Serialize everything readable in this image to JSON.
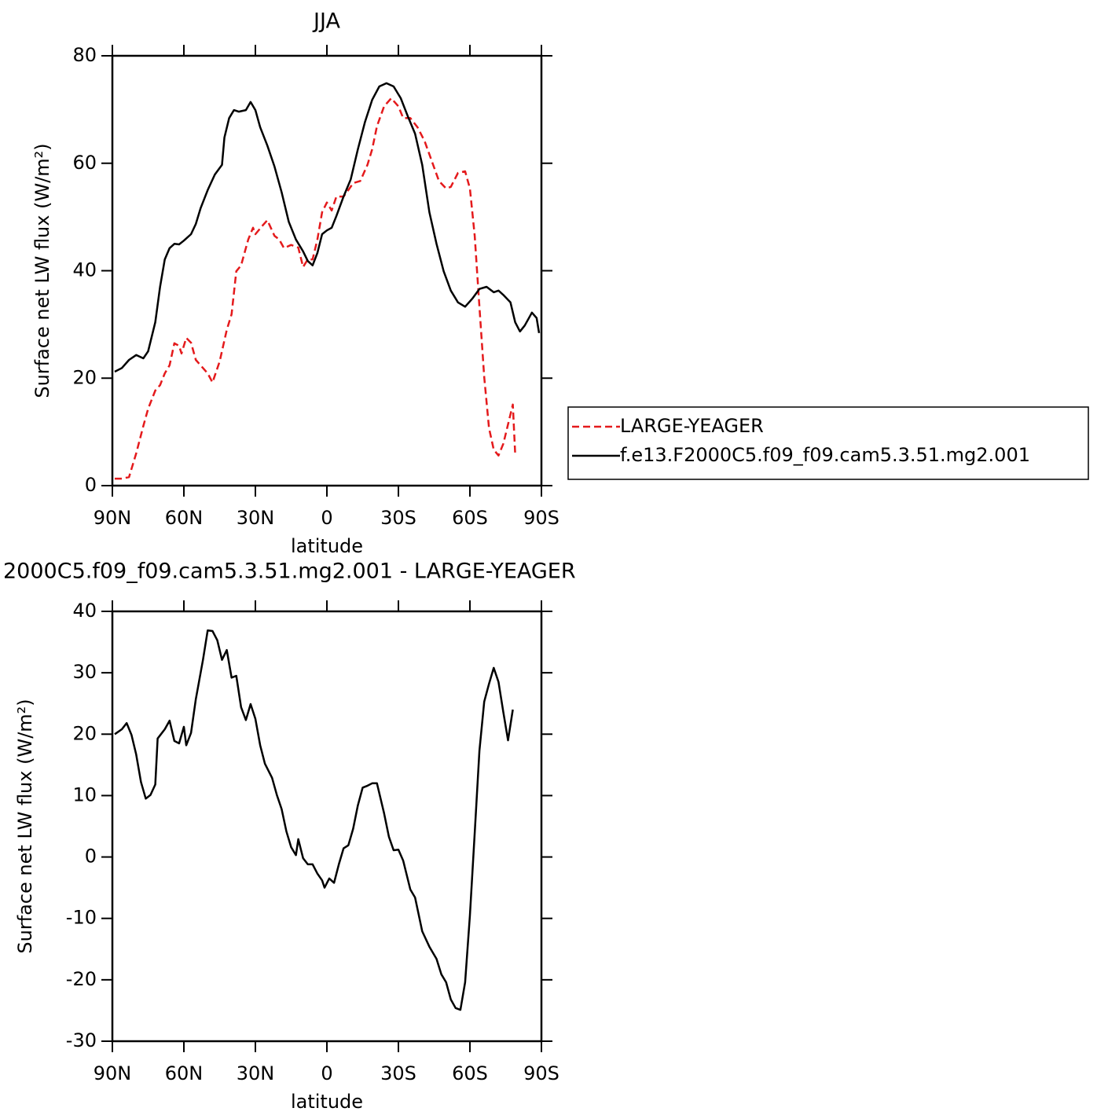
{
  "chart_data": [
    {
      "type": "line",
      "title": "JJA",
      "xlabel": "latitude",
      "ylabel": "Surface net LW flux (W/m²)",
      "xlim": [
        90,
        -90
      ],
      "xticks": [
        {
          "value": 90,
          "label": "90N"
        },
        {
          "value": 60,
          "label": "60N"
        },
        {
          "value": 30,
          "label": "30N"
        },
        0,
        {
          "value": -30,
          "label": "30S"
        },
        {
          "value": -60,
          "label": "60S"
        },
        {
          "value": -90,
          "label": "90S"
        }
      ],
      "ylim": [
        0,
        80
      ],
      "yticks": [
        0,
        20,
        40,
        60,
        80
      ],
      "legend": "right",
      "series": [
        {
          "name": "LARGE-YEAGER",
          "color": "#e41a1c",
          "linestyle": "dashed",
          "x": [
            89,
            86,
            83,
            80,
            77,
            75,
            72,
            70,
            68,
            66,
            64,
            62,
            61,
            59,
            57,
            55,
            53,
            50,
            48,
            45,
            42,
            40,
            38,
            36,
            33,
            31,
            30,
            27,
            25,
            22,
            20,
            18,
            15,
            12,
            10,
            8,
            6,
            4,
            2,
            0,
            -2,
            -4,
            -7,
            -9,
            -11,
            -14,
            -17,
            -19,
            -21,
            -24,
            -27,
            -30,
            -32,
            -35,
            -38,
            -41,
            -44,
            -47,
            -50,
            -52,
            -55,
            -58,
            -60,
            -62,
            -64,
            -66,
            -68,
            -70,
            -72,
            -74,
            -76,
            -78,
            -79
          ],
          "values": [
            1.3,
            1.3,
            1.6,
            6,
            11.1,
            14.3,
            17.7,
            18.7,
            20.9,
            22.4,
            26.5,
            26,
            24.6,
            27.5,
            26.6,
            23.4,
            22.4,
            20.9,
            19.2,
            23.1,
            29,
            31.9,
            39.9,
            41,
            45.8,
            48,
            46.8,
            48.4,
            49.4,
            46.5,
            45.8,
            44.2,
            44.8,
            44.3,
            40.7,
            42.1,
            42.1,
            45.8,
            50.9,
            52.7,
            51.2,
            53.8,
            53.8,
            55,
            56.3,
            56.7,
            59.7,
            62.6,
            66.9,
            70.6,
            72.1,
            70.6,
            68.4,
            68.4,
            66.7,
            64.1,
            60.4,
            56.7,
            55.3,
            55.6,
            58.2,
            58.5,
            55.3,
            46.5,
            33.3,
            20.2,
            10.7,
            6.7,
            5.6,
            7.8,
            11.4,
            15.1,
            5.9
          ]
        },
        {
          "name": "f.e13.F2000C5.f09_f09.cam5.3.51.mg2.001",
          "color": "#000000",
          "linestyle": "solid",
          "x": [
            89,
            86,
            83,
            80,
            77,
            75,
            72,
            70,
            68,
            66,
            64,
            62,
            60,
            57,
            55,
            53,
            50,
            47,
            44,
            43,
            41,
            39,
            37,
            34,
            32,
            30,
            28,
            25,
            22,
            19,
            16,
            13,
            10,
            8,
            6,
            4,
            2,
            0,
            -2,
            -4,
            -7,
            -10,
            -13,
            -16,
            -19,
            -22,
            -25,
            -28,
            -31,
            -34,
            -37,
            -40,
            -43,
            -46,
            -49,
            -52,
            -55,
            -58,
            -61,
            -64,
            -67,
            -70,
            -72,
            -74,
            -77,
            -79,
            -81,
            -83,
            -86,
            -88,
            -89
          ],
          "values": [
            21.2,
            21.9,
            23.4,
            24.3,
            23.7,
            25,
            30.4,
            37,
            42.1,
            44.2,
            45,
            44.9,
            45.6,
            46.8,
            48.7,
            51.6,
            55,
            57.9,
            59.7,
            64.8,
            68.4,
            69.9,
            69.6,
            69.9,
            71.4,
            69.9,
            66.7,
            63.3,
            59.4,
            54.6,
            49.1,
            45.8,
            43.6,
            41.8,
            41,
            43.3,
            46.8,
            47.5,
            48,
            50.2,
            53.8,
            57,
            62.6,
            67.7,
            71.8,
            74.3,
            74.9,
            74.3,
            72.1,
            68.7,
            65.5,
            59.7,
            50.9,
            45,
            39.9,
            36.3,
            34.1,
            33.3,
            34.8,
            36.6,
            37,
            36,
            36.3,
            35.5,
            34.1,
            30.4,
            28.7,
            29.8,
            32.2,
            31.2,
            28.4
          ]
        }
      ]
    },
    {
      "type": "line",
      "title": "2000C5.f09_f09.cam5.3.51.mg2.001 - LARGE-YEAGER",
      "xlabel": "latitude",
      "ylabel": "Surface net LW flux (W/m²)",
      "xlim": [
        90,
        -90
      ],
      "xticks": [
        {
          "value": 90,
          "label": "90N"
        },
        {
          "value": 60,
          "label": "60N"
        },
        {
          "value": 30,
          "label": "30N"
        },
        0,
        {
          "value": -30,
          "label": "30S"
        },
        {
          "value": -60,
          "label": "60S"
        },
        {
          "value": -90,
          "label": "90S"
        }
      ],
      "ylim": [
        -30,
        40
      ],
      "yticks": [
        -30,
        -20,
        -10,
        0,
        10,
        20,
        30,
        40
      ],
      "series": [
        {
          "color": "#000000",
          "linestyle": "solid",
          "x": [
            89,
            86,
            84,
            82,
            80,
            78,
            76,
            74,
            72,
            71,
            68,
            66,
            64,
            62,
            60,
            59,
            57,
            55,
            52,
            50,
            48,
            46,
            44,
            42,
            40,
            38,
            36,
            34,
            32,
            30,
            28,
            26,
            23,
            21,
            19,
            17,
            15,
            13,
            12,
            10,
            8,
            6,
            4,
            2,
            1,
            -1,
            -3,
            -5,
            -7,
            -9,
            -11,
            -13,
            -15,
            -17,
            -19,
            -21,
            -24,
            -26,
            -28,
            -30,
            -32,
            -35,
            -37,
            -40,
            -43,
            -46,
            -48,
            -50,
            -52,
            -54,
            -56,
            -58,
            -60,
            -62,
            -64,
            -66,
            -68,
            -70,
            -72,
            -74,
            -76,
            -78
          ],
          "values": [
            20,
            20.8,
            21.8,
            19.9,
            16.7,
            12.2,
            9.5,
            10.1,
            11.8,
            19.3,
            20.8,
            22.2,
            18.9,
            18.5,
            21.2,
            18.2,
            20.2,
            25.7,
            32.1,
            36.9,
            36.8,
            35.3,
            32.1,
            33.7,
            29.2,
            29.5,
            24.4,
            22.3,
            24.9,
            22.5,
            18.2,
            15.2,
            12.9,
            10.1,
            7.8,
            4.2,
            1.6,
            0.3,
            2.9,
            -0.2,
            -1.2,
            -1.2,
            -2.7,
            -3.8,
            -5,
            -3.5,
            -4.2,
            -1.2,
            1.4,
            1.9,
            4.6,
            8.4,
            11.3,
            11.6,
            12,
            12,
            7.1,
            3.3,
            1.1,
            1.2,
            -0.6,
            -5.3,
            -6.6,
            -12.1,
            -14.6,
            -16.6,
            -19.1,
            -20.4,
            -23.2,
            -24.6,
            -24.9,
            -20.4,
            -9.5,
            3.9,
            17.3,
            25.3,
            28.2,
            30.8,
            28.5,
            23.6,
            19,
            24
          ]
        }
      ]
    }
  ]
}
